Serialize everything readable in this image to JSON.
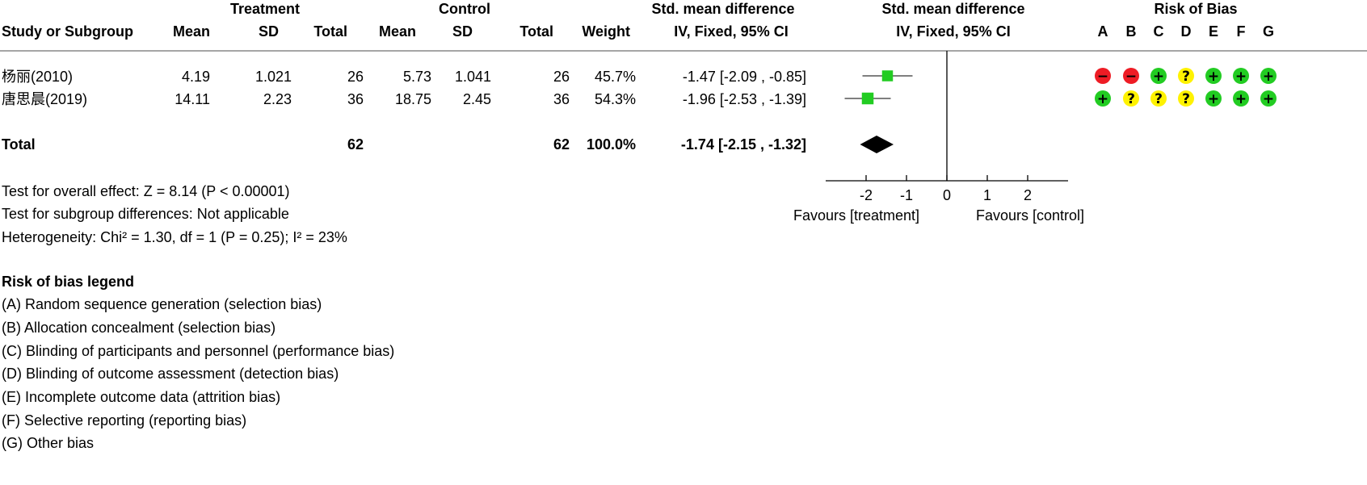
{
  "headers": {
    "treatment_group": "Treatment",
    "control_group": "Control",
    "smd_group": "Std. mean difference",
    "plot_group": "Std. mean difference",
    "rob_group": "Risk of Bias",
    "study": "Study or Subgroup",
    "t_mean": "Mean",
    "t_sd": "SD",
    "t_total": "Total",
    "c_mean": "Mean",
    "c_sd": "SD",
    "c_total": "Total",
    "weight": "Weight",
    "smd_method": "IV, Fixed, 95% CI",
    "plot_method": "IV, Fixed, 95% CI",
    "rob_domains": [
      "A",
      "B",
      "C",
      "D",
      "E",
      "F",
      "G"
    ]
  },
  "studies": [
    {
      "name": "杨丽(2010)",
      "t_mean": "4.19",
      "t_sd": "1.021",
      "t_total": "26",
      "c_mean": "5.73",
      "c_sd": "1.041",
      "c_total": "26",
      "weight": "45.7%",
      "ci_text": "-1.47 [-2.09 , -0.85]"
    },
    {
      "name": "唐思晨(2019)",
      "t_mean": "14.11",
      "t_sd": "2.23",
      "t_total": "36",
      "c_mean": "18.75",
      "c_sd": "2.45",
      "c_total": "36",
      "weight": "54.3%",
      "ci_text": "-1.96 [-2.53 , -1.39]"
    }
  ],
  "total": {
    "label": "Total",
    "t_total": "62",
    "c_total": "62",
    "weight": "100.0%",
    "ci_text": "-1.74 [-2.15 , -1.32]"
  },
  "tests": {
    "overall": "Test for overall effect: Z = 8.14 (P < 0.00001)",
    "subgroup": "Test for subgroup differences: Not applicable",
    "heterogeneity": "Heterogeneity: Chi² = 1.30, df = 1 (P = 0.25); I² = 23%"
  },
  "axis": {
    "favours_left": "Favours [treatment]",
    "favours_right": "Favours [control]"
  },
  "legend": {
    "title": "Risk of bias legend",
    "items": [
      "(A) Random sequence generation (selection bias)",
      "(B) Allocation concealment (selection bias)",
      "(C) Blinding of participants and personnel (performance bias)",
      "(D) Blinding of outcome assessment (detection bias)",
      "(E) Incomplete outcome data (attrition bias)",
      "(F) Selective reporting (reporting bias)",
      "(G) Other bias"
    ]
  },
  "colors": {
    "high_risk": "#ee1c25",
    "unclear_risk": "#fff200",
    "low_risk": "#22cc22",
    "study_marker": "#22cc22",
    "summary_diamond": "#000000",
    "line": "#555555"
  },
  "chart_data": {
    "type": "forest",
    "x_ticks": [
      -2,
      -1,
      0,
      1,
      2
    ],
    "xlim": [
      -3,
      3
    ],
    "studies": [
      {
        "name": "杨丽(2010)",
        "estimate": -1.47,
        "ci_low": -2.09,
        "ci_high": -0.85,
        "weight": 45.7
      },
      {
        "name": "唐思晨(2019)",
        "estimate": -1.96,
        "ci_low": -2.53,
        "ci_high": -1.39,
        "weight": 54.3
      }
    ],
    "summary": {
      "estimate": -1.74,
      "ci_low": -2.15,
      "ci_high": -1.32
    },
    "risk_of_bias": [
      [
        "high",
        "high",
        "low",
        "unclear",
        "low",
        "low",
        "low"
      ],
      [
        "low",
        "unclear",
        "unclear",
        "unclear",
        "low",
        "low",
        "low"
      ]
    ]
  }
}
